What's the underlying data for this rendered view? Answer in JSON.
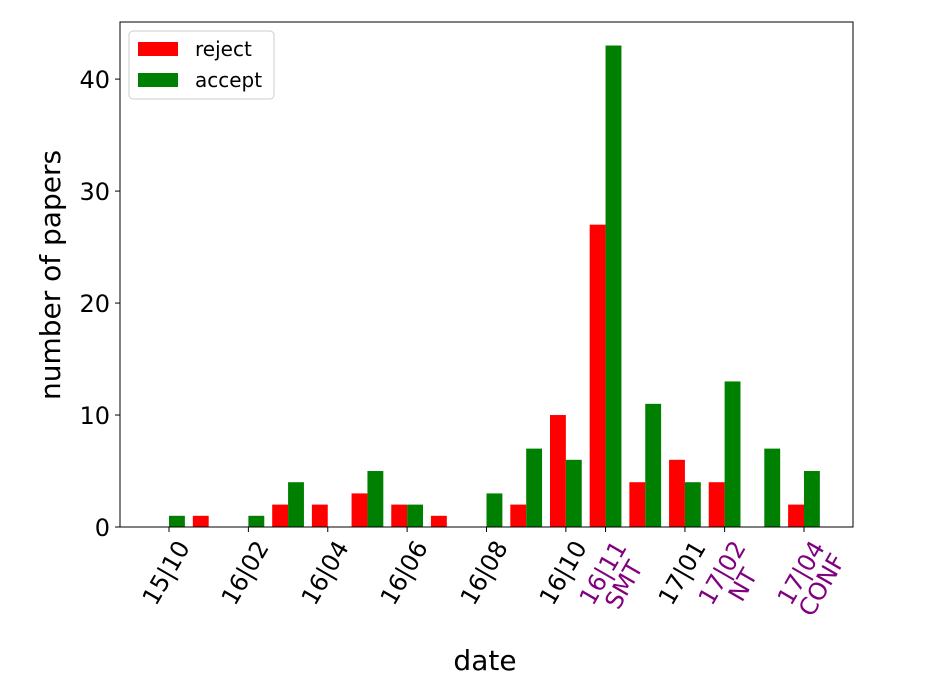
{
  "chart_data": {
    "type": "bar",
    "x_label": "date",
    "y_label": "number of papers",
    "categories": [
      "15|10",
      null,
      "16|02",
      null,
      "16|04",
      null,
      "16|06",
      null,
      "16|08",
      null,
      "16|10",
      "16|11\nSMT",
      null,
      "17|01",
      "17|02\nNT",
      null,
      "17|04\nCONF"
    ],
    "tick_label_colors": [
      "#000000",
      null,
      "#000000",
      null,
      "#000000",
      null,
      "#000000",
      null,
      "#000000",
      null,
      "#000000",
      "#800080",
      null,
      "#000000",
      "#800080",
      null,
      "#800080"
    ],
    "series": [
      {
        "name": "reject",
        "color": "#ff0000",
        "values": [
          0,
          1,
          0,
          2,
          2,
          3,
          2,
          1,
          0,
          2,
          10,
          27,
          4,
          6,
          4,
          0,
          2
        ]
      },
      {
        "name": "accept",
        "color": "#008000",
        "values": [
          1,
          0,
          1,
          4,
          0,
          5,
          2,
          0,
          3,
          7,
          6,
          43,
          11,
          4,
          13,
          7,
          5
        ]
      }
    ],
    "ylim": [
      0,
      45.1
    ],
    "yticks": [
      0,
      10,
      20,
      30,
      40
    ],
    "grid": false,
    "legend": "upper left"
  }
}
